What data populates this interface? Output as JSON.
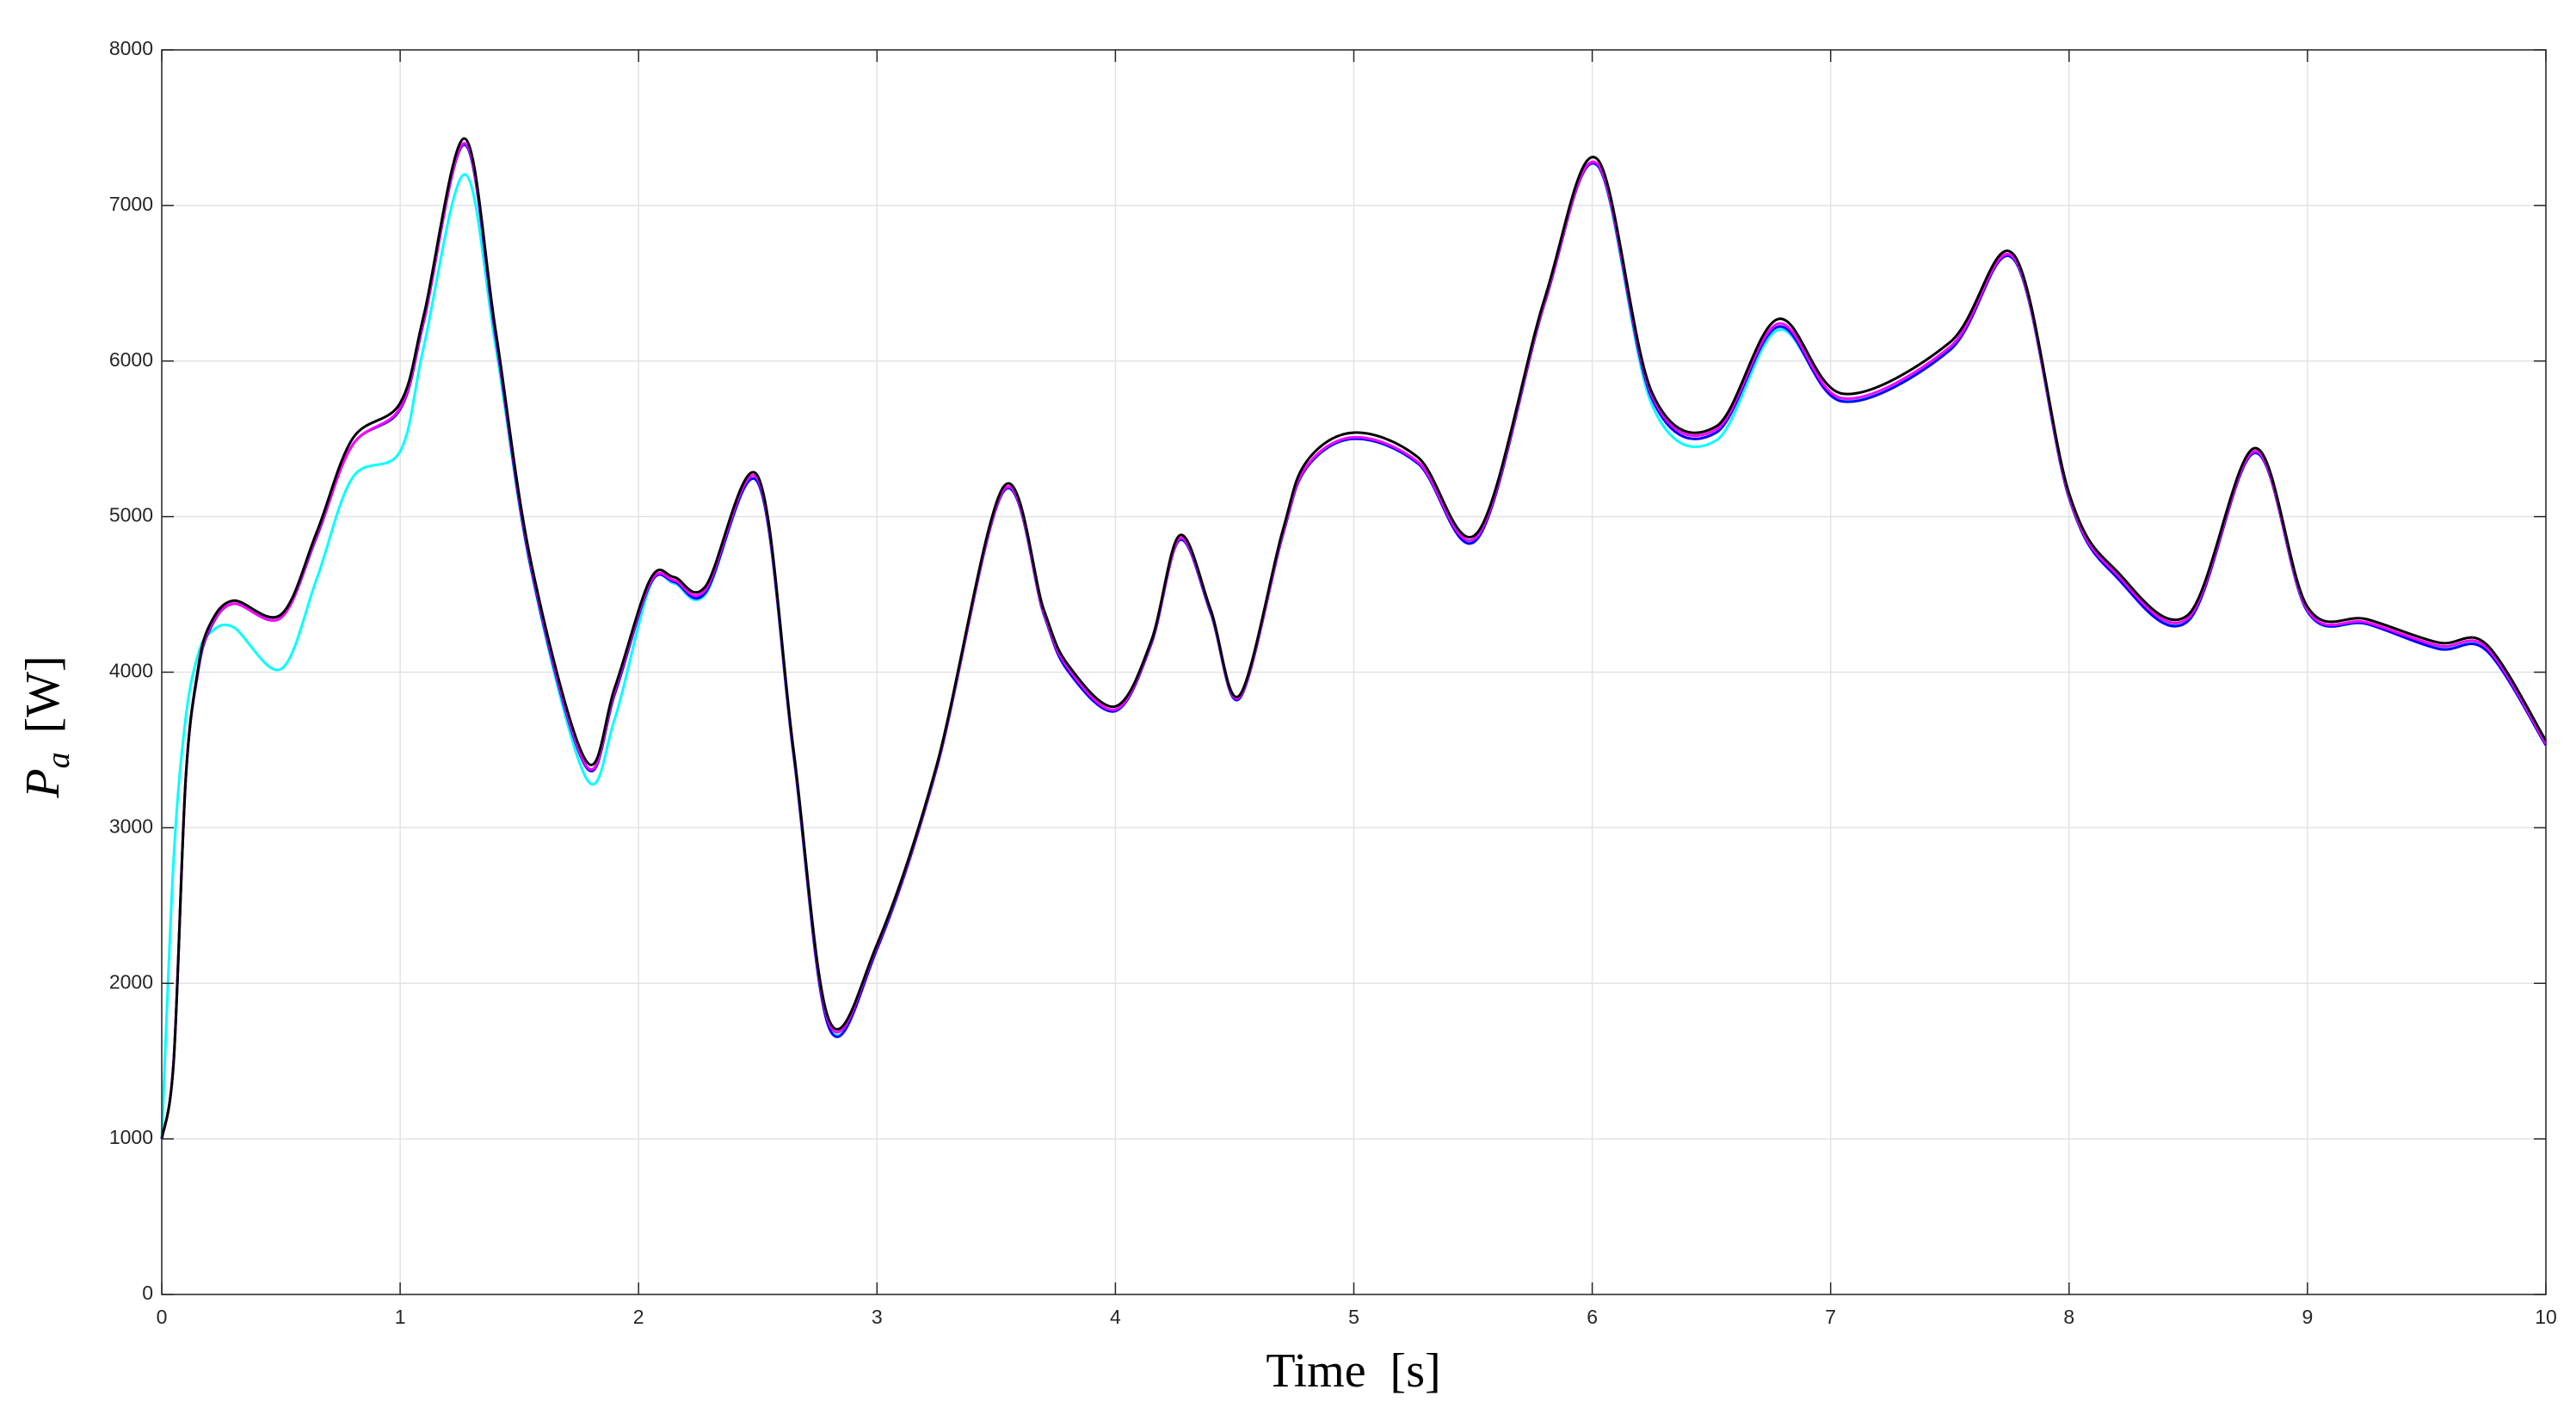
{
  "chart_data": {
    "type": "line",
    "xlabel": "Time  [s]",
    "ylabel": {
      "symbol": "P",
      "subscript": "a",
      "unit": "[W]"
    },
    "x": [
      0,
      0.05,
      0.1,
      0.15,
      0.2,
      0.3,
      0.5,
      0.65,
      0.8,
      1.0,
      1.1,
      1.27,
      1.4,
      1.55,
      1.78,
      1.9,
      2.05,
      2.15,
      2.28,
      2.5,
      2.65,
      2.8,
      3.0,
      3.25,
      3.53,
      3.7,
      3.8,
      4.0,
      4.15,
      4.27,
      4.4,
      4.52,
      4.7,
      4.8,
      5.0,
      5.27,
      5.52,
      5.8,
      6.02,
      6.25,
      6.52,
      6.78,
      7.05,
      7.5,
      7.77,
      8.0,
      8.2,
      8.5,
      8.78,
      9.0,
      9.25,
      9.55,
      9.75,
      10
    ],
    "series": [
      {
        "color": "#00ffff",
        "values": [
          1000,
          2800,
          3700,
          4100,
          4250,
          4290,
          4020,
          4600,
          5250,
          5420,
          6100,
          7200,
          6100,
          4650,
          3320,
          3700,
          4560,
          4570,
          4500,
          5220,
          3470,
          1720,
          2220,
          3380,
          5160,
          4370,
          4020,
          3760,
          4180,
          4860,
          4380,
          3840,
          4870,
          5310,
          5500,
          5340,
          4870,
          6370,
          7260,
          5720,
          5490,
          6200,
          5750,
          6080,
          6650,
          5120,
          4620,
          4340,
          5420,
          4390,
          4310,
          4160,
          4150,
          3540
        ]
      },
      {
        "color": "#0000ff",
        "values": [
          1000,
          1500,
          3300,
          3980,
          4270,
          4440,
          4350,
          4870,
          5460,
          5690,
          6260,
          7390,
          6160,
          4660,
          3390,
          3860,
          4570,
          4580,
          4510,
          5220,
          3470,
          1710,
          2220,
          3380,
          5160,
          4370,
          4010,
          3750,
          4180,
          4850,
          4380,
          3830,
          4870,
          5310,
          5500,
          5340,
          4860,
          6370,
          7260,
          5760,
          5540,
          6220,
          5740,
          6070,
          6650,
          5120,
          4610,
          4330,
          5410,
          4390,
          4310,
          4150,
          4140,
          3530
        ]
      },
      {
        "color": "#ff00ff",
        "values": [
          1000,
          1500,
          3300,
          3990,
          4280,
          4440,
          4350,
          4880,
          5460,
          5700,
          6270,
          7400,
          6180,
          4680,
          3400,
          3880,
          4580,
          4590,
          4530,
          5240,
          3490,
          1740,
          2240,
          3390,
          5170,
          4380,
          4030,
          3760,
          4190,
          4860,
          4390,
          3840,
          4880,
          5320,
          5510,
          5350,
          4880,
          6380,
          7270,
          5780,
          5560,
          6240,
          5760,
          6090,
          6660,
          5130,
          4630,
          4350,
          5420,
          4400,
          4320,
          4170,
          4160,
          3540
        ]
      },
      {
        "color": "#000000",
        "values": [
          1000,
          1500,
          3300,
          4000,
          4300,
          4460,
          4370,
          4900,
          5500,
          5730,
          6300,
          7430,
          6200,
          4700,
          3430,
          3900,
          4600,
          4610,
          4550,
          5260,
          3500,
          1760,
          2250,
          3400,
          5190,
          4400,
          4050,
          3780,
          4200,
          4880,
          4400,
          3850,
          4900,
          5350,
          5540,
          5380,
          4900,
          6400,
          7300,
          5800,
          5580,
          6270,
          5790,
          6120,
          6680,
          5150,
          4650,
          4370,
          5440,
          4420,
          4340,
          4190,
          4180,
          3560
        ]
      }
    ],
    "xlim": [
      0,
      10
    ],
    "xticks": [
      0,
      1,
      2,
      3,
      4,
      5,
      6,
      7,
      8,
      9,
      10
    ],
    "ylim": [
      0,
      8000
    ],
    "yticks": [
      0,
      1000,
      2000,
      3000,
      4000,
      5000,
      6000,
      7000,
      8000
    ],
    "grid": true
  }
}
